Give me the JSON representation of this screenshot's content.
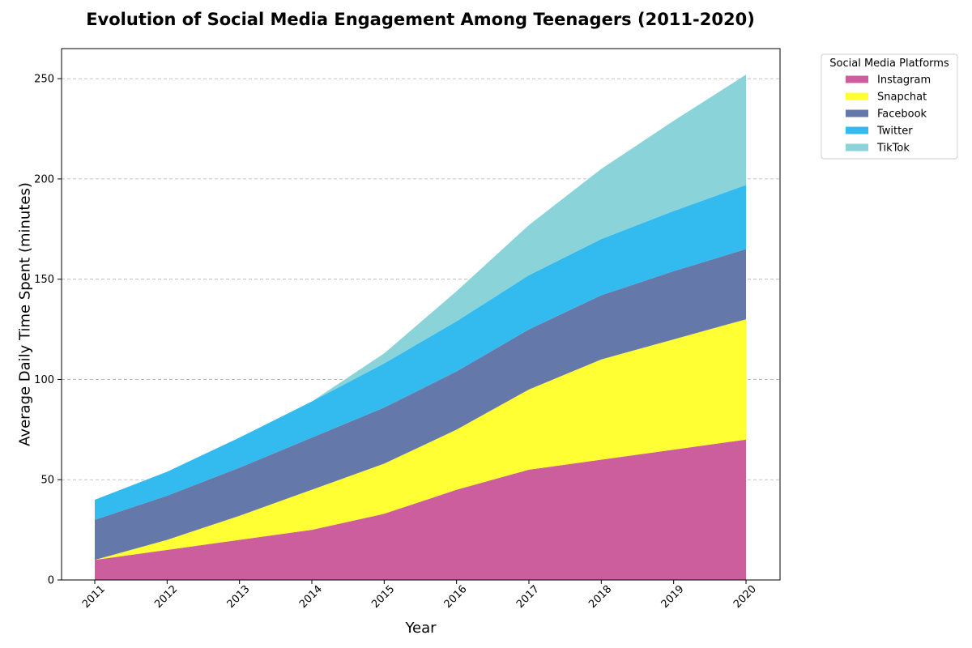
{
  "chart_data": {
    "type": "area",
    "stacked": true,
    "title": "Evolution of Social Media Engagement Among Teenagers (2011-2020)",
    "xlabel": "Year",
    "ylabel": "Average Daily Time Spent (minutes)",
    "x": [
      "2011",
      "2012",
      "2013",
      "2014",
      "2015",
      "2016",
      "2017",
      "2018",
      "2019",
      "2020"
    ],
    "ylim": [
      0,
      265
    ],
    "yticks": [
      0,
      50,
      100,
      150,
      200,
      250
    ],
    "grid": "y-dashed",
    "legend": {
      "title": "Social Media Platforms",
      "placement": "outside-top-right"
    },
    "series": [
      {
        "name": "Instagram",
        "color": "#cc5e9d",
        "values": [
          10,
          15,
          20,
          25,
          33,
          45,
          55,
          60,
          65,
          70
        ]
      },
      {
        "name": "Snapchat",
        "color": "#ffff33",
        "values": [
          0,
          5,
          12,
          20,
          25,
          30,
          40,
          50,
          55,
          60
        ]
      },
      {
        "name": "Facebook",
        "color": "#6479aa",
        "values": [
          20,
          22,
          24,
          26,
          28,
          29,
          30,
          32,
          34,
          35
        ]
      },
      {
        "name": "Twitter",
        "color": "#33bbf0",
        "values": [
          10,
          12,
          15,
          18,
          22,
          25,
          27,
          28,
          30,
          32
        ]
      },
      {
        "name": "TikTok",
        "color": "#89d3d9",
        "values": [
          0,
          0,
          0,
          0,
          5,
          15,
          25,
          35,
          45,
          55
        ]
      }
    ]
  }
}
